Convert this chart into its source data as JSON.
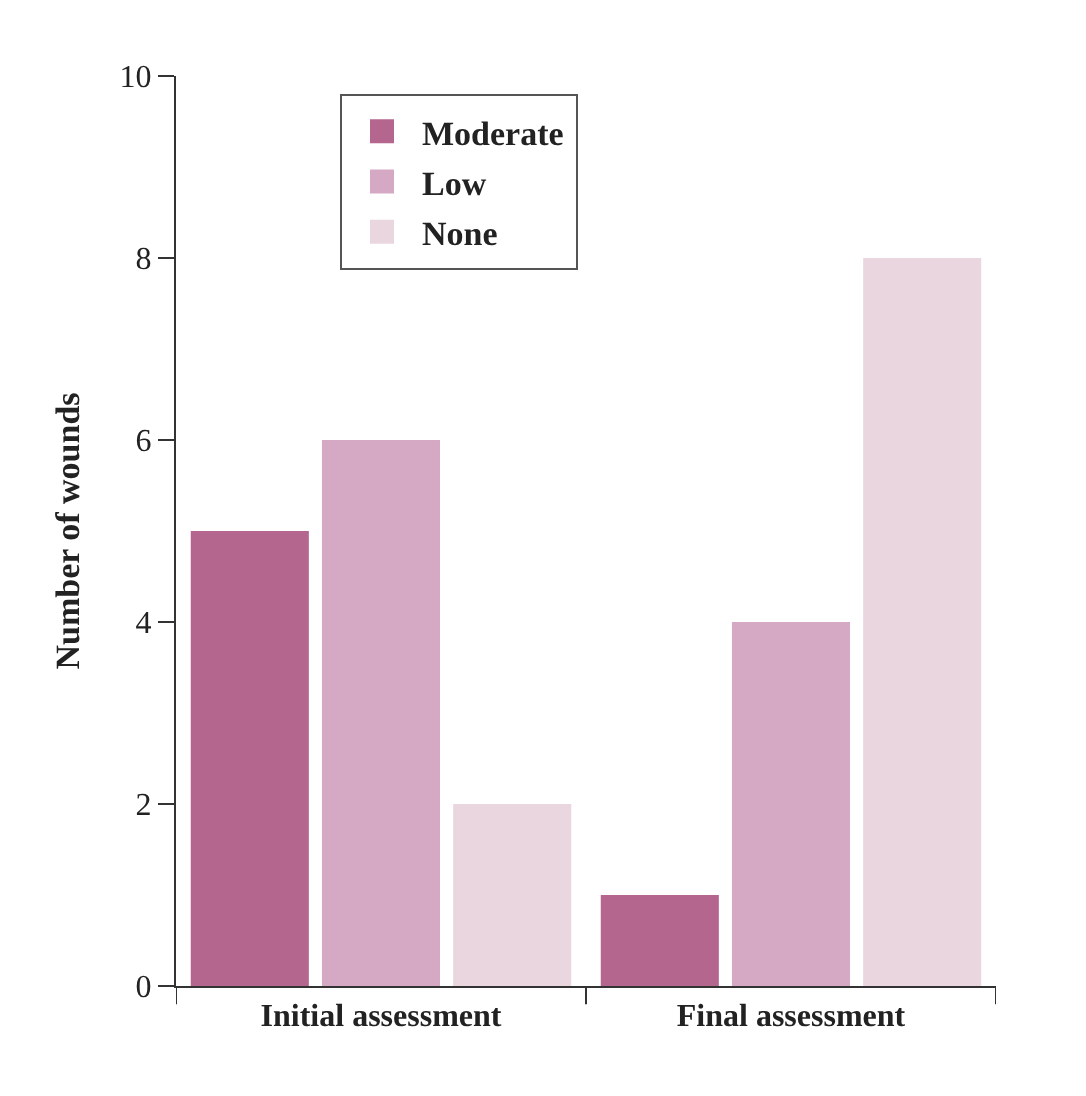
{
  "chart_data": {
    "type": "bar",
    "ylabel": "Number of wounds",
    "categories": [
      "Initial assessment",
      "Final assessment"
    ],
    "series": [
      {
        "name": "Moderate",
        "color": "#b5668f",
        "values": [
          5,
          1
        ]
      },
      {
        "name": "Low",
        "color": "#d5a9c3",
        "values": [
          6,
          4
        ]
      },
      {
        "name": "None",
        "color": "#ead6df",
        "values": [
          2,
          8
        ]
      }
    ],
    "ylim": [
      0,
      10
    ],
    "yticks": [
      0,
      2,
      4,
      6,
      8,
      10
    ],
    "legend": "top left"
  }
}
